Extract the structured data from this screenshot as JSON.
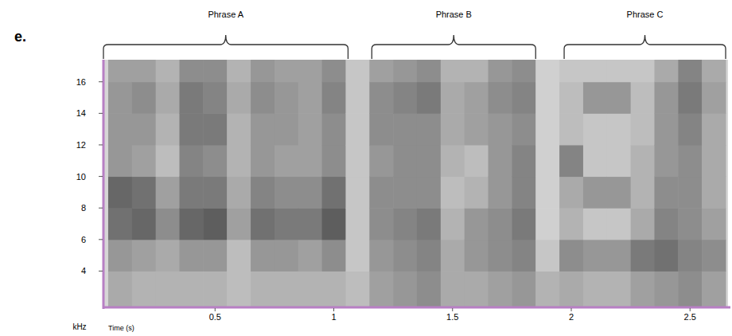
{
  "chart_data": {
    "type": "spectrogram",
    "panel_label": "e.",
    "x_label": "Time (s)",
    "y_label": "kHz",
    "xlim": [
      0.03,
      2.66
    ],
    "ylim": [
      1.7,
      17.4
    ],
    "xticks": [
      0.5,
      1,
      1.5,
      2,
      2.5
    ],
    "yticks": [
      4,
      6,
      8,
      10,
      12,
      14,
      16
    ],
    "grid": false,
    "zlim": [
      0,
      1
    ],
    "x_edges": [
      0.05,
      0.15,
      0.25,
      0.35,
      0.45,
      0.55,
      0.65,
      0.75,
      0.85,
      0.95,
      1.05,
      1.15,
      1.25,
      1.35,
      1.45,
      1.55,
      1.65,
      1.75,
      1.85,
      1.95,
      2.05,
      2.15,
      2.25,
      2.35,
      2.45,
      2.55,
      2.65
    ],
    "y_edges": [
      1.7,
      4,
      6,
      8,
      10,
      12,
      14,
      16,
      17.4
    ],
    "z": [
      [
        0.45,
        0.55,
        0.75,
        0.8,
        0.55,
        0.55,
        0.55,
        0.5
      ],
      [
        0.4,
        0.5,
        0.8,
        0.75,
        0.5,
        0.55,
        0.6,
        0.5
      ],
      [
        0.4,
        0.45,
        0.6,
        0.5,
        0.35,
        0.4,
        0.45,
        0.4
      ],
      [
        0.4,
        0.55,
        0.8,
        0.7,
        0.65,
        0.7,
        0.7,
        0.6
      ],
      [
        0.4,
        0.55,
        0.85,
        0.7,
        0.6,
        0.7,
        0.65,
        0.6
      ],
      [
        0.35,
        0.35,
        0.5,
        0.45,
        0.4,
        0.4,
        0.45,
        0.4
      ],
      [
        0.4,
        0.55,
        0.75,
        0.65,
        0.55,
        0.55,
        0.6,
        0.55
      ],
      [
        0.4,
        0.55,
        0.7,
        0.6,
        0.5,
        0.55,
        0.55,
        0.5
      ],
      [
        0.4,
        0.5,
        0.7,
        0.6,
        0.5,
        0.5,
        0.5,
        0.5
      ],
      [
        0.4,
        0.6,
        0.85,
        0.75,
        0.6,
        0.6,
        0.65,
        0.6
      ],
      [
        0.35,
        0.3,
        0.3,
        0.3,
        0.3,
        0.3,
        0.3,
        0.3
      ],
      [
        0.5,
        0.55,
        0.6,
        0.6,
        0.55,
        0.6,
        0.6,
        0.5
      ],
      [
        0.55,
        0.6,
        0.65,
        0.6,
        0.6,
        0.6,
        0.65,
        0.55
      ],
      [
        0.6,
        0.65,
        0.7,
        0.6,
        0.6,
        0.6,
        0.7,
        0.6
      ],
      [
        0.45,
        0.45,
        0.4,
        0.35,
        0.4,
        0.45,
        0.45,
        0.4
      ],
      [
        0.45,
        0.55,
        0.55,
        0.4,
        0.35,
        0.5,
        0.5,
        0.4
      ],
      [
        0.5,
        0.6,
        0.6,
        0.55,
        0.55,
        0.55,
        0.6,
        0.55
      ],
      [
        0.55,
        0.65,
        0.7,
        0.65,
        0.65,
        0.6,
        0.65,
        0.6
      ],
      [
        0.4,
        0.3,
        0.25,
        0.25,
        0.25,
        0.25,
        0.25,
        0.25
      ],
      [
        0.45,
        0.6,
        0.4,
        0.45,
        0.65,
        0.35,
        0.35,
        0.3
      ],
      [
        0.4,
        0.55,
        0.3,
        0.55,
        0.3,
        0.3,
        0.55,
        0.3
      ],
      [
        0.4,
        0.55,
        0.3,
        0.55,
        0.3,
        0.3,
        0.55,
        0.3
      ],
      [
        0.5,
        0.7,
        0.45,
        0.4,
        0.4,
        0.35,
        0.35,
        0.3
      ],
      [
        0.55,
        0.75,
        0.65,
        0.6,
        0.55,
        0.55,
        0.55,
        0.45
      ],
      [
        0.6,
        0.65,
        0.6,
        0.6,
        0.6,
        0.65,
        0.7,
        0.65
      ],
      [
        0.5,
        0.6,
        0.5,
        0.45,
        0.45,
        0.45,
        0.5,
        0.45
      ]
    ],
    "phrases": [
      {
        "label": "Phrase A",
        "start": 0.03,
        "end": 1.06
      },
      {
        "label": "Phrase B",
        "start": 1.16,
        "end": 1.85
      },
      {
        "label": "Phrase C",
        "start": 1.97,
        "end": 2.65
      }
    ]
  }
}
